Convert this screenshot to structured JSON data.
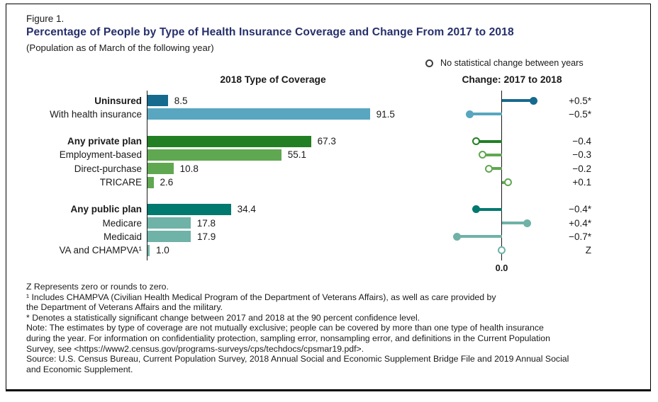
{
  "figure": {
    "label": "Figure 1.",
    "title": "Percentage of People by Type of Health Insurance Coverage and Change From 2017 to 2018",
    "subtitle": "(Population as of March of the following year)",
    "legend_no_change": "No statistical change between years",
    "left_header": "2018 Type of Coverage",
    "right_header": "Change: 2017 to 2018",
    "zero_label": "0.0"
  },
  "colors": {
    "title_navy": "#262f6b",
    "dark_blue": "#156a8e",
    "light_blue": "#58a6bf",
    "dark_green": "#237f24",
    "mid_green": "#60a751",
    "dark_teal": "#00796f",
    "mid_teal": "#6fb2a7",
    "legend_gray": "#3f3f3f",
    "text": "#1a1a1a"
  },
  "chart_data": {
    "type": "bar",
    "title": "Percentage of People by Type of Health Insurance Coverage and Change From 2017 to 2018",
    "subtitle": "(Population as of March of the following year)",
    "panels": {
      "left": {
        "header": "2018 Type of Coverage",
        "unit": "percent",
        "implied_range": [
          0,
          100
        ]
      },
      "right": {
        "header": "Change: 2017 to 2018",
        "unit": "percentage points",
        "zero_tick_label": "0.0"
      }
    },
    "legend": [
      {
        "marker": "open-circle",
        "label": "No statistical change between years"
      }
    ],
    "rows": [
      {
        "label": "Uninsured",
        "bold": true,
        "percent": 8.5,
        "percent_label": "8.5",
        "change": 0.5,
        "change_label": "+0.5*",
        "marker": "filled",
        "color_key": "dark_blue",
        "gap_before": false
      },
      {
        "label": "With health insurance",
        "bold": false,
        "percent": 91.5,
        "percent_label": "91.5",
        "change": -0.5,
        "change_label": "−0.5*",
        "marker": "filled",
        "color_key": "light_blue",
        "gap_before": false
      },
      {
        "label": "Any private plan",
        "bold": true,
        "percent": 67.3,
        "percent_label": "67.3",
        "change": -0.4,
        "change_label": "−0.4",
        "marker": "open",
        "color_key": "dark_green",
        "gap_before": true
      },
      {
        "label": "Employment-based",
        "bold": false,
        "percent": 55.1,
        "percent_label": "55.1",
        "change": -0.3,
        "change_label": "−0.3",
        "marker": "open",
        "color_key": "mid_green",
        "gap_before": false
      },
      {
        "label": "Direct-purchase",
        "bold": false,
        "percent": 10.8,
        "percent_label": "10.8",
        "change": -0.2,
        "change_label": "−0.2",
        "marker": "open",
        "color_key": "mid_green",
        "gap_before": false
      },
      {
        "label": "TRICARE",
        "bold": false,
        "percent": 2.6,
        "percent_label": "2.6",
        "change": 0.1,
        "change_label": "+0.1",
        "marker": "open",
        "color_key": "mid_green",
        "gap_before": false
      },
      {
        "label": "Any public plan",
        "bold": true,
        "percent": 34.4,
        "percent_label": "34.4",
        "change": -0.4,
        "change_label": "−0.4*",
        "marker": "filled",
        "color_key": "dark_teal",
        "gap_before": true
      },
      {
        "label": "Medicare",
        "bold": false,
        "percent": 17.8,
        "percent_label": "17.8",
        "change": 0.4,
        "change_label": "+0.4*",
        "marker": "filled",
        "color_key": "mid_teal",
        "gap_before": false
      },
      {
        "label": "Medicaid",
        "bold": false,
        "percent": 17.9,
        "percent_label": "17.9",
        "change": -0.7,
        "change_label": "−0.7*",
        "marker": "filled",
        "color_key": "mid_teal",
        "gap_before": false
      },
      {
        "label": "VA and CHAMPVA¹",
        "bold": false,
        "percent": 1.0,
        "percent_label": "1.0",
        "change": 0,
        "change_label": "Z",
        "marker": "open",
        "color_key": "mid_teal",
        "gap_before": false
      }
    ]
  },
  "footnotes": [
    "Z Represents zero or rounds to zero.",
    "¹ Includes CHAMPVA (Civilian Health Medical Program of the Department of Veterans Affairs), as well as care provided by",
    "the Department of Veterans Affairs and the military.",
    "* Denotes a statistically significant change between 2017 and 2018 at the 90 percent confidence level.",
    "Note: The estimates by type of coverage are not mutually exclusive; people can be covered by more than one type of health insurance",
    "during the year. For information on confidentiality protection, sampling error, nonsampling error, and definitions in the Current Population",
    "Survey, see <https://www2.census.gov/programs-surveys/cps/techdocs/cpsmar19.pdf>.",
    "Source: U.S. Census Bureau, Current Population Survey, 2018 Annual Social and Economic Supplement Bridge File and 2019 Annual Social",
    "and Economic Supplement."
  ]
}
